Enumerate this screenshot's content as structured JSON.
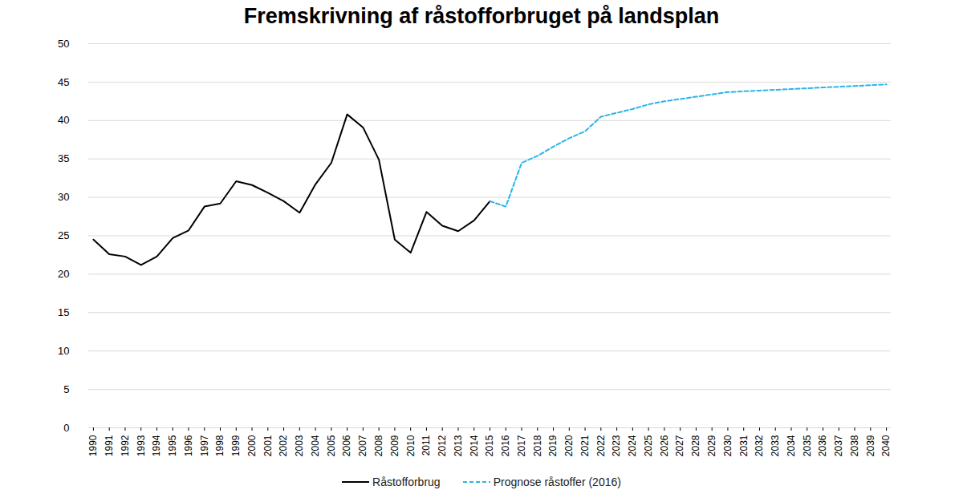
{
  "chart_data": {
    "type": "line",
    "title": "Fremskrivning af råstofforbruget på landsplan",
    "categories": [
      "1990",
      "1991",
      "1992",
      "1993",
      "1994",
      "1995",
      "1996",
      "1997",
      "1998",
      "1999",
      "2000",
      "2001",
      "2002",
      "2003",
      "2004",
      "2005",
      "2006",
      "2007",
      "2008",
      "2009",
      "2010",
      "2011",
      "2012",
      "2013",
      "2014",
      "2015",
      "2016",
      "2017",
      "2018",
      "2019",
      "2020",
      "2021",
      "2022",
      "2023",
      "2024",
      "2025",
      "2026",
      "2027",
      "2028",
      "2029",
      "2030",
      "2031",
      "2032",
      "2033",
      "2034",
      "2035",
      "2036",
      "2037",
      "2038",
      "2039",
      "2040"
    ],
    "series": [
      {
        "name": "Råstofforbrug",
        "color": "#000000",
        "line_style": "solid",
        "values": [
          24.5,
          22.6,
          22.3,
          21.2,
          22.3,
          24.7,
          25.7,
          28.8,
          29.2,
          32.1,
          31.6,
          30.6,
          29.5,
          28.0,
          31.7,
          34.5,
          40.8,
          39.1,
          34.9,
          24.5,
          22.8,
          28.1,
          26.3,
          25.6,
          27.0,
          29.5,
          null,
          null,
          null,
          null,
          null,
          null,
          null,
          null,
          null,
          null,
          null,
          null,
          null,
          null,
          null,
          null,
          null,
          null,
          null,
          null,
          null,
          null,
          null,
          null,
          null
        ]
      },
      {
        "name": "Prognose råstoffer (2016)",
        "color": "#29b6e8",
        "line_style": "dashed",
        "values": [
          null,
          null,
          null,
          null,
          null,
          null,
          null,
          null,
          null,
          null,
          null,
          null,
          null,
          null,
          null,
          null,
          null,
          null,
          null,
          null,
          null,
          null,
          null,
          null,
          null,
          29.5,
          28.8,
          34.5,
          35.4,
          36.6,
          37.7,
          38.6,
          40.5,
          41.0,
          41.5,
          42.1,
          42.5,
          42.8,
          43.1,
          43.4,
          43.7,
          43.8,
          43.9,
          44.0,
          44.1,
          44.2,
          44.3,
          44.4,
          44.5,
          44.6,
          44.7
        ]
      }
    ],
    "ylim": [
      0,
      50
    ],
    "yticks": [
      0,
      5,
      10,
      15,
      20,
      25,
      30,
      35,
      40,
      45,
      50
    ],
    "grid": true,
    "legend": "bottom"
  }
}
